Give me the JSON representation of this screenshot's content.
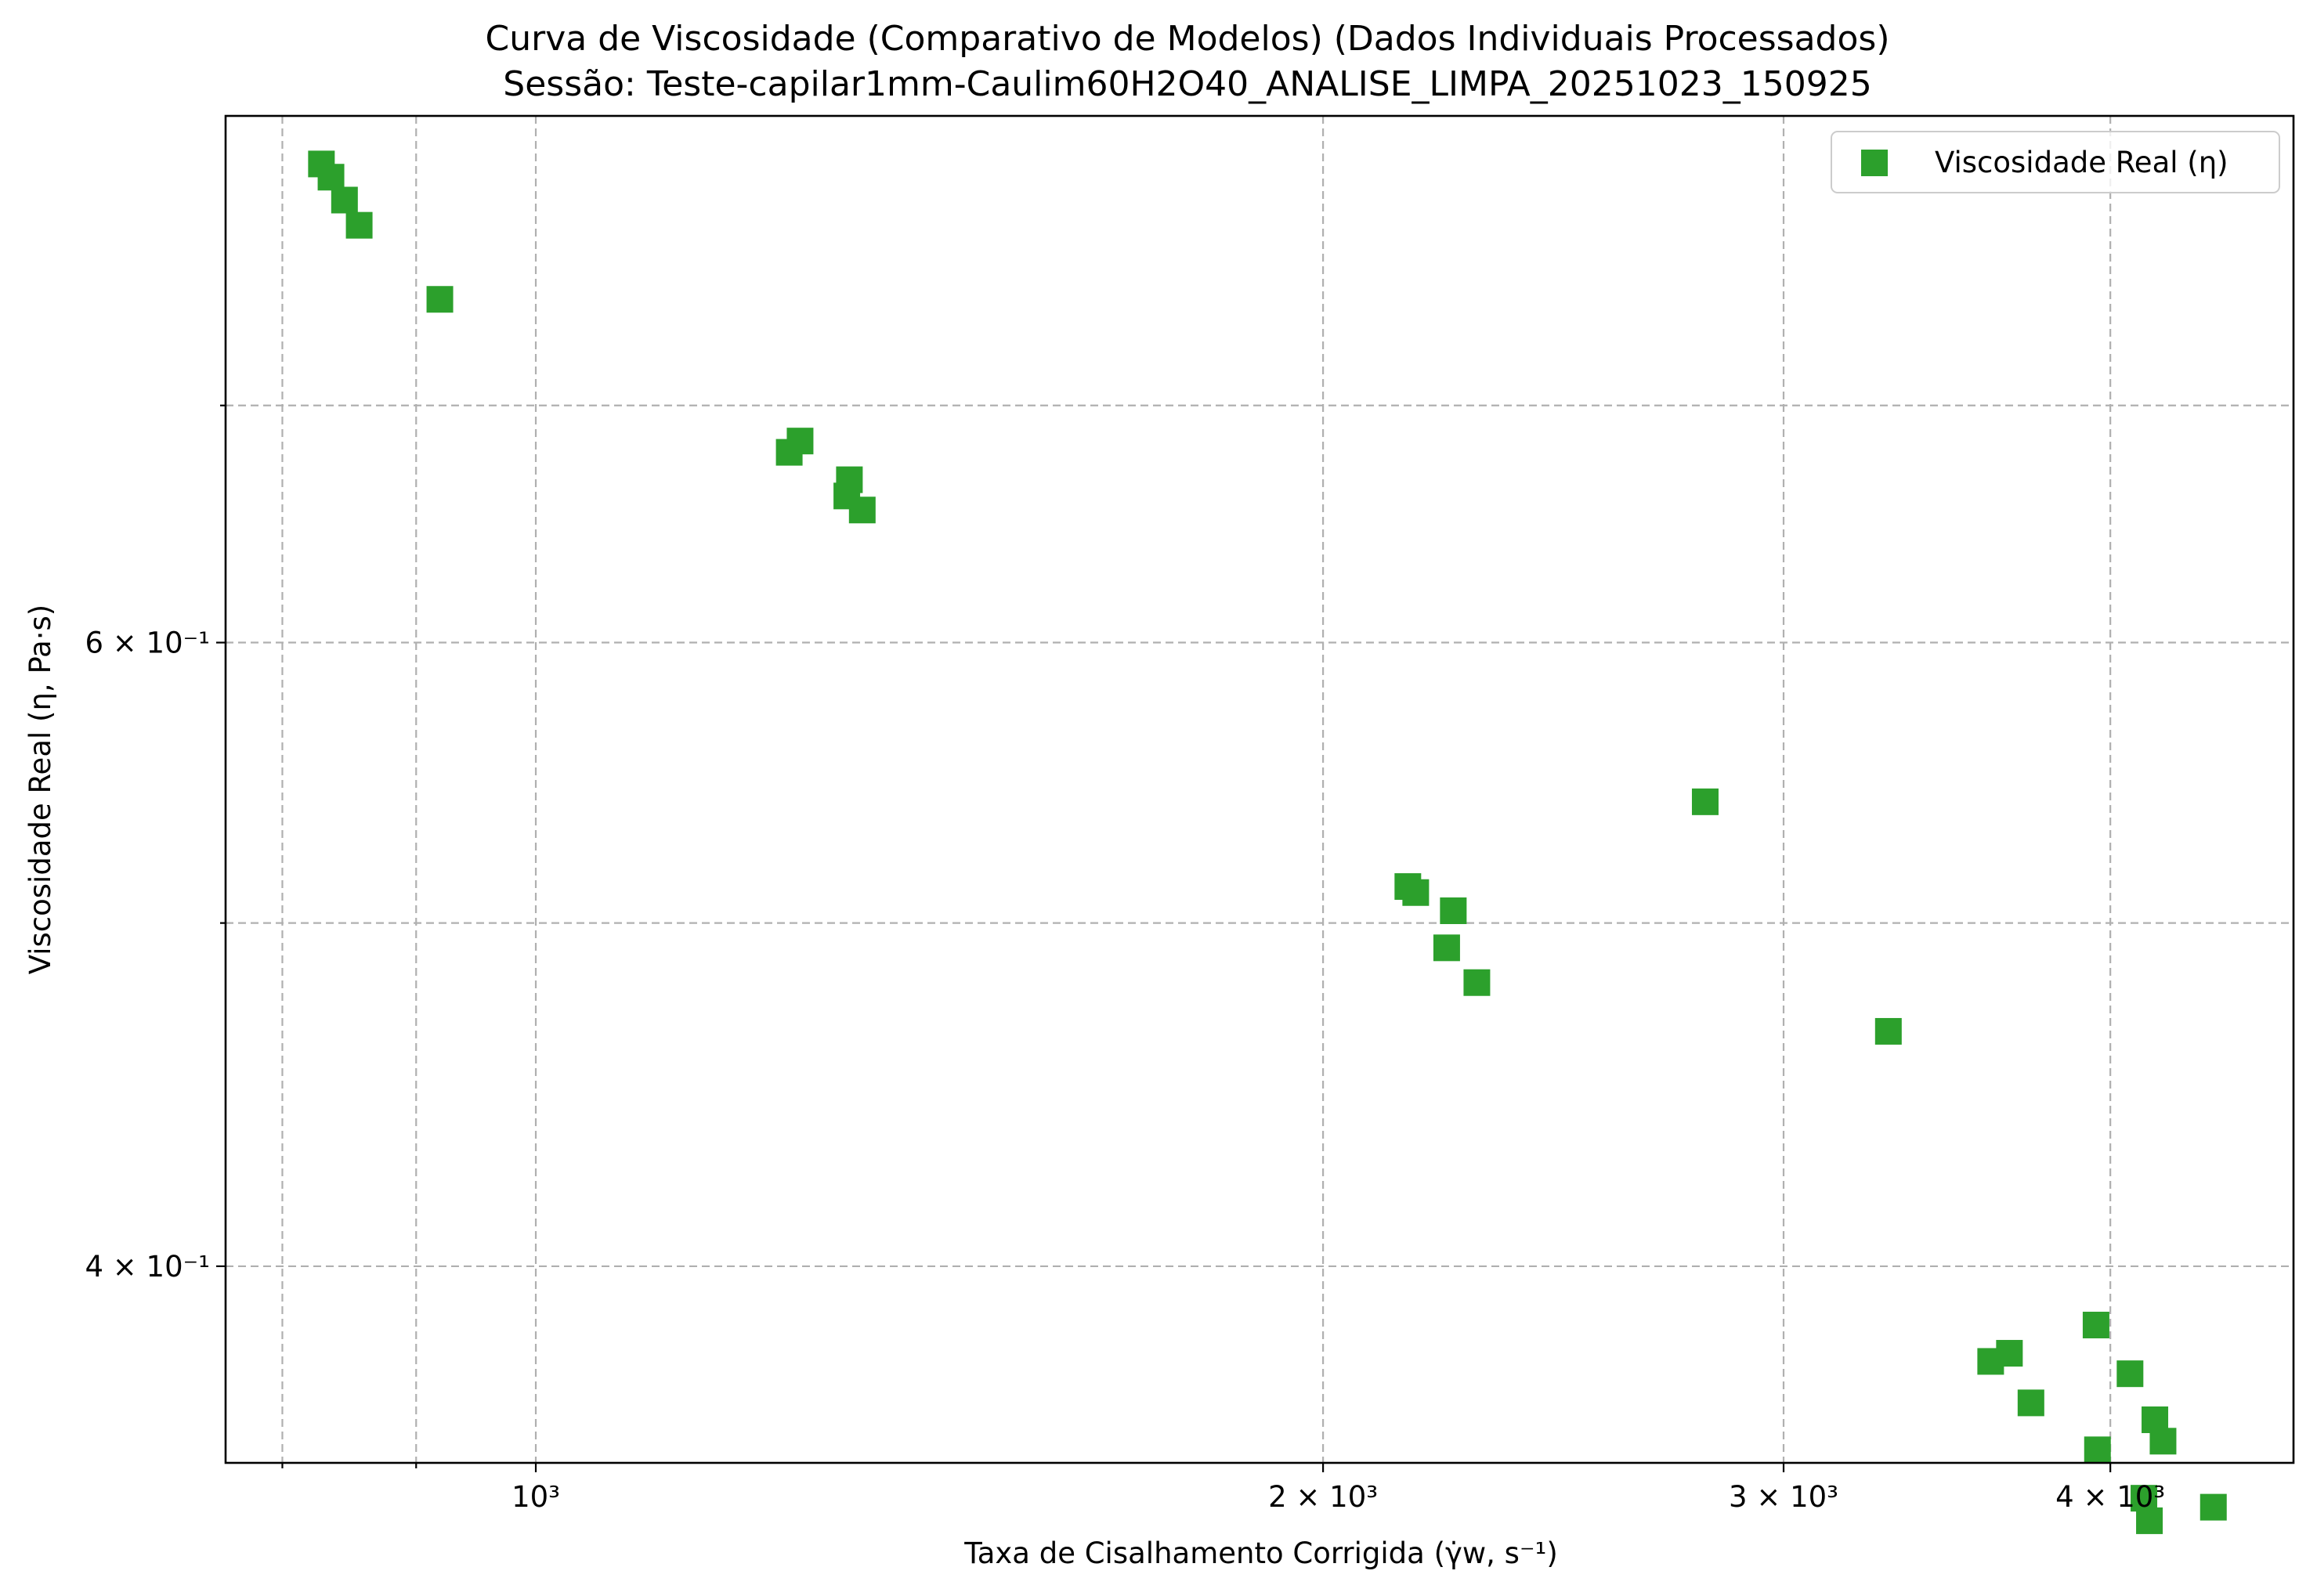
{
  "chart_data": {
    "type": "scatter",
    "title": "Curva de Viscosidade (Comparativo de Modelos) (Dados Individuais Processados)",
    "subtitle": "Sessão: Teste-capilar1mm-Caulim60H2O40_ANALISE_LIMPA_20251023_150925",
    "xlabel": "Taxa de Cisalhamento Corrigida (γ̇w, s⁻¹)",
    "ylabel": "Viscosidade Real (η, Pa·s)",
    "xscale": "log",
    "yscale": "log",
    "xlim": [
      761,
      4700
    ],
    "ylim": [
      0.352,
      0.845
    ],
    "grid": true,
    "legend_position": "top-right",
    "x_ticks": [
      {
        "value": 1000,
        "label": "10³"
      },
      {
        "value": 2000,
        "label": "2 × 10³"
      },
      {
        "value": 3000,
        "label": "3 × 10³"
      },
      {
        "value": 4000,
        "label": "4 × 10³"
      }
    ],
    "x_minor_ticks": [
      800,
      900
    ],
    "y_ticks": [
      {
        "value": 0.6,
        "label": "6 × 10⁻¹"
      },
      {
        "value": 0.4,
        "label": "4 × 10⁻¹"
      }
    ],
    "y_minor_ticks": [
      0.7,
      0.5
    ],
    "series": [
      {
        "name": "Viscosidade Real (η)",
        "color": "#2ca02c",
        "marker": "square",
        "points": [
          {
            "x": 828,
            "y": 0.819
          },
          {
            "x": 835,
            "y": 0.812
          },
          {
            "x": 845,
            "y": 0.8
          },
          {
            "x": 856,
            "y": 0.787
          },
          {
            "x": 919,
            "y": 0.75
          },
          {
            "x": 1250,
            "y": 0.679
          },
          {
            "x": 1262,
            "y": 0.684
          },
          {
            "x": 1315,
            "y": 0.66
          },
          {
            "x": 1318,
            "y": 0.667
          },
          {
            "x": 1333,
            "y": 0.654
          },
          {
            "x": 2155,
            "y": 0.512
          },
          {
            "x": 2170,
            "y": 0.51
          },
          {
            "x": 2230,
            "y": 0.492
          },
          {
            "x": 2243,
            "y": 0.504
          },
          {
            "x": 2290,
            "y": 0.481
          },
          {
            "x": 2800,
            "y": 0.541
          },
          {
            "x": 3290,
            "y": 0.466
          },
          {
            "x": 3600,
            "y": 0.376
          },
          {
            "x": 3660,
            "y": 0.378
          },
          {
            "x": 3730,
            "y": 0.366
          },
          {
            "x": 3950,
            "y": 0.385
          },
          {
            "x": 3955,
            "y": 0.355
          },
          {
            "x": 4070,
            "y": 0.373
          },
          {
            "x": 4160,
            "y": 0.362
          },
          {
            "x": 4190,
            "y": 0.357
          },
          {
            "x": 4120,
            "y": 0.344
          },
          {
            "x": 4140,
            "y": 0.339
          },
          {
            "x": 4380,
            "y": 0.342
          }
        ]
      }
    ]
  }
}
